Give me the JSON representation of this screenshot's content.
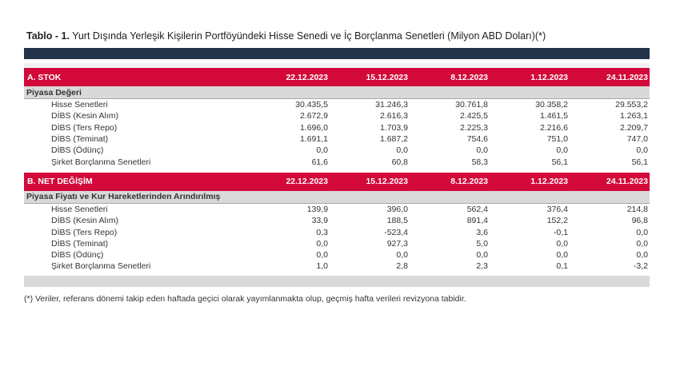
{
  "title": {
    "prefix": "Tablo - 1.",
    "rest": "Yurt Dışında Yerleşik Kişilerin Portföyündeki Hisse Senedi ve İç Borçlanma Senetleri (Milyon ABD Doları)(*)"
  },
  "columns": [
    "22.12.2023",
    "15.12.2023",
    "8.12.2023",
    "1.12.2023",
    "24.11.2023"
  ],
  "sections": [
    {
      "header": "A. STOK",
      "subheader": "Piyasa Değeri",
      "rows": [
        {
          "label": "Hisse Senetleri",
          "values": [
            "30.435,5",
            "31.246,3",
            "30.761,8",
            "30.358,2",
            "29.553,2"
          ]
        },
        {
          "label": "DİBS (Kesin Alım)",
          "values": [
            "2.672,9",
            "2.616,3",
            "2.425,5",
            "1.461,5",
            "1.263,1"
          ]
        },
        {
          "label": "DİBS (Ters Repo)",
          "values": [
            "1.696,0",
            "1.703,9",
            "2.225,3",
            "2.216,6",
            "2.209,7"
          ]
        },
        {
          "label": "DİBS (Teminat)",
          "values": [
            "1.691,1",
            "1.687,2",
            "754,6",
            "751,0",
            "747,0"
          ]
        },
        {
          "label": "DİBS (Ödünç)",
          "values": [
            "0,0",
            "0,0",
            "0,0",
            "0,0",
            "0,0"
          ]
        },
        {
          "label": "Şirket Borçlanma Senetleri",
          "values": [
            "61,6",
            "60,8",
            "58,3",
            "56,1",
            "56,1"
          ]
        }
      ]
    },
    {
      "header": "B. NET DEĞİŞİM",
      "subheader": "Piyasa Fiyatı ve Kur Hareketlerinden Arındırılmış",
      "rows": [
        {
          "label": "Hisse Senetleri",
          "values": [
            "139,9",
            "396,0",
            "562,4",
            "376,4",
            "214,8"
          ]
        },
        {
          "label": "DİBS (Kesin Alım)",
          "values": [
            "33,9",
            "188,5",
            "891,4",
            "152,2",
            "96,8"
          ]
        },
        {
          "label": "DİBS (Ters Repo)",
          "values": [
            "0,3",
            "-523,4",
            "3,6",
            "-0,1",
            "0,0"
          ]
        },
        {
          "label": "DİBS (Teminat)",
          "values": [
            "0,0",
            "927,3",
            "5,0",
            "0,0",
            "0,0"
          ]
        },
        {
          "label": "DİBS (Ödünç)",
          "values": [
            "0,0",
            "0,0",
            "0,0",
            "0,0",
            "0,0"
          ]
        },
        {
          "label": "Şirket Borçlanma Senetleri",
          "values": [
            "1,0",
            "2,8",
            "2,3",
            "0,1",
            "-3,2"
          ]
        }
      ]
    }
  ],
  "footnote": "(*) Veriler, referans dönemi takip eden haftada geçici olarak yayımlanmakta olup, geçmiş hafta verileri revizyona tabidir.",
  "colors": {
    "navy": "#22334A",
    "red": "#D20939",
    "band_gray": "#D9D9D9",
    "strip_gray": "#F1F1F3"
  }
}
